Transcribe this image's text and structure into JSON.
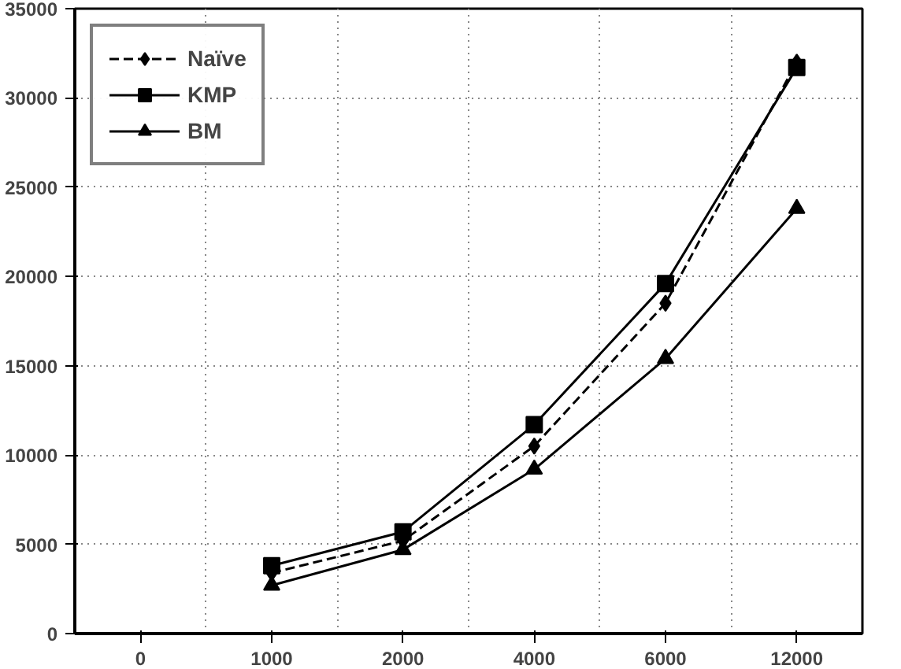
{
  "chart_data": {
    "type": "line",
    "categories": [
      "0",
      "1000",
      "2000",
      "4000",
      "6000",
      "12000"
    ],
    "ylim": [
      0,
      35000
    ],
    "yticks": [
      0,
      5000,
      10000,
      15000,
      20000,
      25000,
      30000,
      35000
    ],
    "grid": true,
    "legend": "top left",
    "series": [
      {
        "name": "Naïve",
        "color": "#000000",
        "marker": "diamond",
        "line_style": "dashed",
        "values": [
          null,
          3400,
          5200,
          10500,
          18500,
          32000
        ]
      },
      {
        "name": "KMP",
        "color": "#000000",
        "marker": "square",
        "line_style": "solid",
        "values": [
          null,
          3800,
          5700,
          11700,
          19600,
          31700
        ]
      },
      {
        "name": "BM",
        "color": "#000000",
        "marker": "triangle",
        "line_style": "solid",
        "values": [
          null,
          2700,
          4700,
          9200,
          15400,
          23800
        ]
      }
    ]
  }
}
